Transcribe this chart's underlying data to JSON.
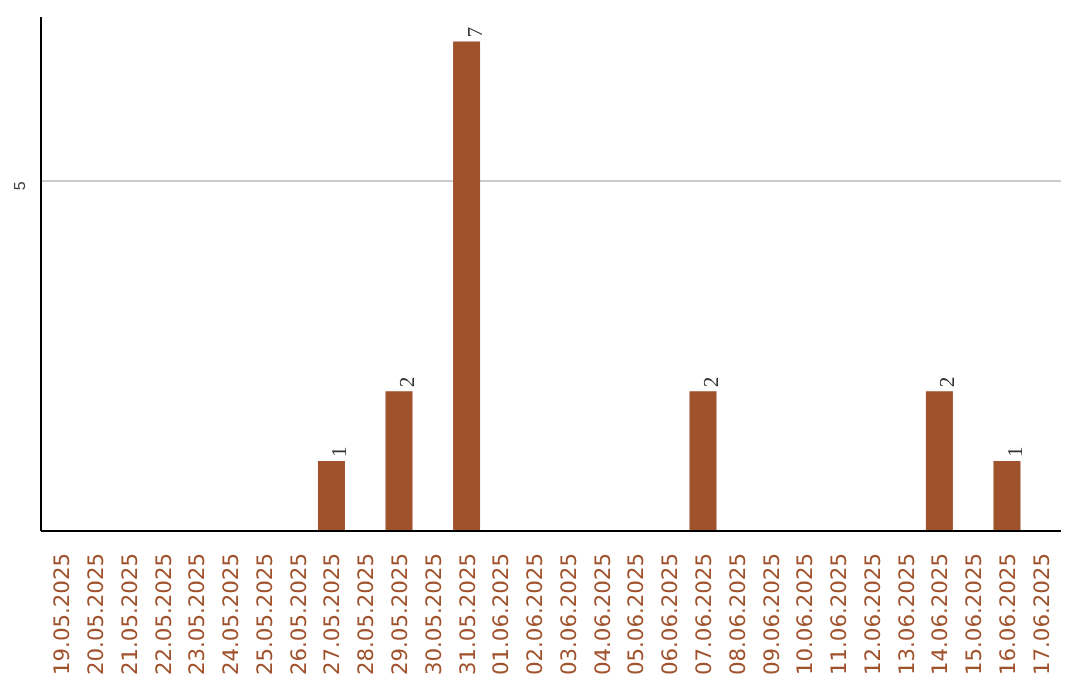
{
  "chart_data": {
    "type": "bar",
    "categories": [
      "19.05.2025",
      "20.05.2025",
      "21.05.2025",
      "22.05.2025",
      "23.05.2025",
      "24.05.2025",
      "25.05.2025",
      "26.05.2025",
      "27.05.2025",
      "28.05.2025",
      "29.05.2025",
      "30.05.2025",
      "31.05.2025",
      "01.06.2025",
      "02.06.2025",
      "03.06.2025",
      "04.06.2025",
      "05.06.2025",
      "06.06.2025",
      "07.06.2025",
      "08.06.2025",
      "09.06.2025",
      "10.06.2025",
      "11.06.2025",
      "12.06.2025",
      "13.06.2025",
      "14.06.2025",
      "15.06.2025",
      "16.06.2025",
      "17.06.2025"
    ],
    "values": [
      0,
      0,
      0,
      0,
      0,
      0,
      0,
      0,
      1,
      0,
      2,
      0,
      7,
      0,
      0,
      0,
      0,
      0,
      0,
      2,
      0,
      0,
      0,
      0,
      0,
      0,
      2,
      0,
      1,
      0
    ],
    "value_labels": [
      null,
      null,
      null,
      null,
      null,
      null,
      null,
      null,
      "1",
      null,
      "2",
      null,
      "7",
      null,
      null,
      null,
      null,
      null,
      null,
      "2",
      null,
      null,
      null,
      null,
      null,
      null,
      "2",
      null,
      "1",
      null
    ],
    "color": "#a0522d",
    "ylim": [
      0,
      7.35
    ],
    "yticks": [
      5
    ],
    "grid": "y"
  }
}
